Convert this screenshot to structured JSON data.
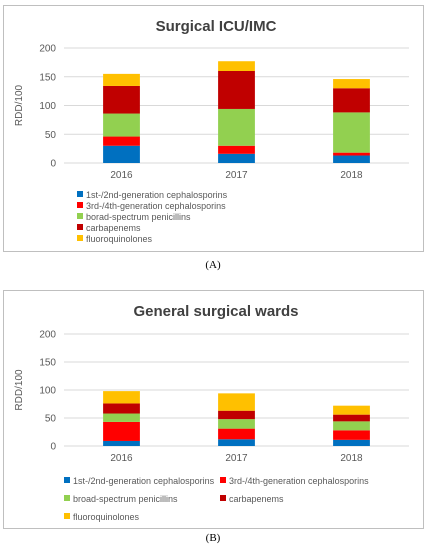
{
  "chart_data": [
    {
      "type": "bar",
      "stacked": true,
      "title": "Surgical ICU/IMC",
      "ylabel": "RDD/100",
      "xlabel": "",
      "categories": [
        "2016",
        "2017",
        "2018"
      ],
      "ylim": [
        0,
        200
      ],
      "yticks": [
        "0",
        "50",
        "100",
        "150",
        "200"
      ],
      "grid": true,
      "legend": "bottom-left, vertical list",
      "series": [
        {
          "name": "1st-/2nd-generation cephalosporins",
          "color": "#0070c0",
          "values": [
            30,
            16,
            13
          ]
        },
        {
          "name": "3rd-/4th-generation cephalosporins",
          "color": "#ff0000",
          "values": [
            16,
            14,
            5
          ]
        },
        {
          "name": "borad-spectrum penicillins",
          "color": "#92d050",
          "values": [
            40,
            64,
            70
          ]
        },
        {
          "name": "carbapenems",
          "color": "#c00000",
          "values": [
            48,
            66,
            42
          ]
        },
        {
          "name": "fluoroquinolones",
          "color": "#ffc000",
          "values": [
            21,
            17,
            16
          ]
        }
      ],
      "caption": "(A)"
    },
    {
      "type": "bar",
      "stacked": true,
      "title": "General surgical wards",
      "ylabel": "RDD/100",
      "xlabel": "",
      "categories": [
        "2016",
        "2017",
        "2018"
      ],
      "ylim": [
        0,
        200
      ],
      "yticks": [
        "0",
        "50",
        "100",
        "150",
        "200"
      ],
      "grid": true,
      "legend": "bottom, two columns",
      "series": [
        {
          "name": "1st-/2nd-generation cephalosporins",
          "color": "#0070c0",
          "values": [
            9,
            12,
            11
          ]
        },
        {
          "name": "3rd-/4th-generation cephalosporins",
          "color": "#ff0000",
          "values": [
            34,
            19,
            17
          ]
        },
        {
          "name": "broad-spectrum penicillins",
          "color": "#92d050",
          "values": [
            15,
            17,
            16
          ]
        },
        {
          "name": "carbapenems",
          "color": "#c00000",
          "values": [
            18,
            15,
            12
          ]
        },
        {
          "name": "fluoroquinolones",
          "color": "#ffc000",
          "values": [
            22,
            31,
            16
          ]
        }
      ],
      "caption": "(B)"
    }
  ]
}
